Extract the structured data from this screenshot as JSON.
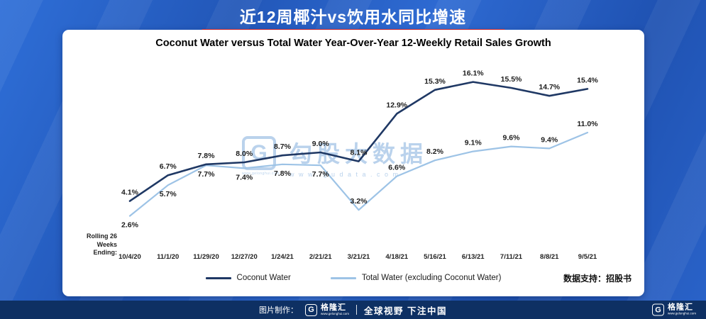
{
  "page": {
    "title": "近12周椰汁vs饮用水同比增速"
  },
  "card": {
    "chart_title": "Coconut Water versus Total Water Year-Over-Year 12-Weekly Retail Sales Growth",
    "rolling_label": "Rolling 26\nWeeks\nEnding:",
    "data_support": "数据支持：招股书"
  },
  "watermark": {
    "logo_letter": "G",
    "logo_url": "www.gelonghui.com",
    "text": "勾股大数据",
    "url": "www.gudata.com"
  },
  "footer": {
    "made_by": "图片制作：",
    "logo_letter": "G",
    "logo_name": "格隆汇",
    "logo_url": "www.gelonghui.com",
    "slogan": "全球视野 下注中国"
  },
  "colors": {
    "coconut": "#1f3864",
    "total": "#9dc3e6",
    "accent_red": "#e02b2b",
    "footer_bg": "#0e3063",
    "background_blue": "#2a63c9"
  },
  "chart_data": {
    "type": "line",
    "title": "Coconut Water versus Total Water Year-Over-Year 12-Weekly Retail Sales Growth",
    "xlabel": "Rolling 26 Weeks Ending:",
    "ylabel": "",
    "ylim": [
      0,
      18
    ],
    "grid": false,
    "legend_position": "bottom",
    "categories": [
      "10/4/20",
      "11/1/20",
      "11/29/20",
      "12/27/20",
      "1/24/21",
      "2/21/21",
      "3/21/21",
      "4/18/21",
      "5/16/21",
      "6/13/21",
      "7/11/21",
      "8/8/21",
      "9/5/21"
    ],
    "series": [
      {
        "name": "Coconut Water",
        "color_key": "coconut",
        "values": [
          4.1,
          6.7,
          7.8,
          8.0,
          8.7,
          9.0,
          8.1,
          12.9,
          15.3,
          16.1,
          15.5,
          14.7,
          15.4
        ],
        "labels": [
          "4.1%",
          "6.7%",
          "7.8%",
          "8.0%",
          "8.7%",
          "9.0%",
          "8.1%",
          "12.9%",
          "15.3%",
          "16.1%",
          "15.5%",
          "14.7%",
          "15.4%"
        ],
        "label_side": "above"
      },
      {
        "name": "Total Water (excluding Coconut Water)",
        "color_key": "total",
        "values": [
          2.6,
          5.7,
          7.7,
          7.4,
          7.8,
          7.7,
          3.2,
          6.6,
          8.2,
          9.1,
          9.6,
          9.4,
          11.0
        ],
        "labels": [
          "2.6%",
          "5.7%",
          "7.7%",
          "7.4%",
          "7.8%",
          "7.7%",
          "3.2%",
          "6.6%",
          "8.2%",
          "9.1%",
          "9.6%",
          "9.4%",
          "11.0%"
        ],
        "label_side": [
          "below",
          "below",
          "below",
          "below",
          "below",
          "below",
          "above",
          "above",
          "above",
          "above",
          "above",
          "above",
          "above"
        ]
      }
    ]
  }
}
